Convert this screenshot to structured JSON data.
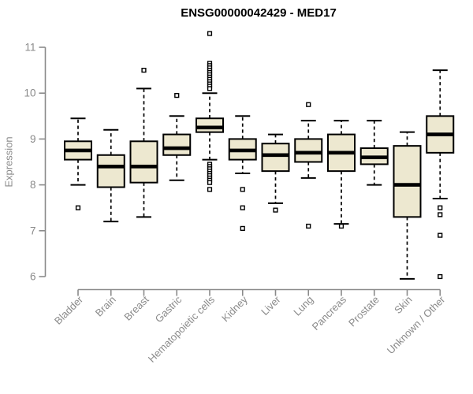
{
  "chart_data": {
    "type": "boxplot",
    "title": "ENSG00000042429 - MED17",
    "ylabel": "Expression",
    "xlabel": "",
    "ylim": [
      6,
      11
    ],
    "y_ticks": [
      6,
      7,
      8,
      9,
      10,
      11
    ],
    "grid": "off",
    "legend": "none",
    "colors": {
      "box_fill": "#EDE8D0",
      "box_border": "#000000",
      "median": "#000000",
      "whisker": "#000000",
      "axis_line": "#8a8a8a",
      "tick_label": "#8a8a8a",
      "title": "#000000"
    },
    "categories": [
      "Bladder",
      "Brain",
      "Breast",
      "Gastric",
      "Hematopoietic cells",
      "Kidney",
      "Liver",
      "Lung",
      "Pancreas",
      "Prostate",
      "Skin",
      "Unknown / Other"
    ],
    "series": [
      {
        "label": "Bladder",
        "whisker_low": 8.0,
        "q1": 8.55,
        "median": 8.75,
        "q3": 8.95,
        "whisker_high": 9.45,
        "outliers": [
          7.5
        ]
      },
      {
        "label": "Brain",
        "whisker_low": 7.2,
        "q1": 7.95,
        "median": 8.4,
        "q3": 8.65,
        "whisker_high": 9.2,
        "outliers": []
      },
      {
        "label": "Breast",
        "whisker_low": 7.3,
        "q1": 8.05,
        "median": 8.4,
        "q3": 8.95,
        "whisker_high": 10.1,
        "outliers": [
          10.5
        ]
      },
      {
        "label": "Gastric",
        "whisker_low": 8.1,
        "q1": 8.65,
        "median": 8.8,
        "q3": 9.1,
        "whisker_high": 9.5,
        "outliers": [
          9.95
        ]
      },
      {
        "label": "Hematopoietic cells",
        "whisker_low": 8.55,
        "q1": 9.15,
        "median": 9.25,
        "q3": 9.45,
        "whisker_high": 10.0,
        "outliers": [
          11.3,
          10.65,
          10.6,
          10.55,
          10.5,
          10.45,
          10.4,
          10.35,
          10.3,
          10.25,
          10.2,
          10.15,
          10.1,
          8.45,
          8.4,
          8.35,
          8.3,
          8.25,
          8.2,
          8.15,
          8.1,
          8.05,
          7.9
        ]
      },
      {
        "label": "Kidney",
        "whisker_low": 8.25,
        "q1": 8.55,
        "median": 8.75,
        "q3": 9.0,
        "whisker_high": 9.5,
        "outliers": [
          7.9,
          7.5,
          7.05
        ]
      },
      {
        "label": "Liver",
        "whisker_low": 7.6,
        "q1": 8.3,
        "median": 8.65,
        "q3": 8.9,
        "whisker_high": 9.1,
        "outliers": [
          7.45
        ]
      },
      {
        "label": "Lung",
        "whisker_low": 8.15,
        "q1": 8.5,
        "median": 8.7,
        "q3": 9.0,
        "whisker_high": 9.4,
        "outliers": [
          9.75,
          7.1
        ]
      },
      {
        "label": "Pancreas",
        "whisker_low": 7.15,
        "q1": 8.3,
        "median": 8.7,
        "q3": 9.1,
        "whisker_high": 9.4,
        "outliers": [
          7.1
        ]
      },
      {
        "label": "Prostate",
        "whisker_low": 8.0,
        "q1": 8.45,
        "median": 8.6,
        "q3": 8.8,
        "whisker_high": 9.4,
        "outliers": []
      },
      {
        "label": "Skin",
        "whisker_low": 5.95,
        "q1": 7.3,
        "median": 8.0,
        "q3": 8.85,
        "whisker_high": 9.15,
        "outliers": []
      },
      {
        "label": "Unknown / Other",
        "whisker_low": 7.7,
        "q1": 8.7,
        "median": 9.1,
        "q3": 9.5,
        "whisker_high": 10.5,
        "outliers": [
          7.5,
          7.35,
          6.9,
          6.0
        ]
      }
    ]
  }
}
